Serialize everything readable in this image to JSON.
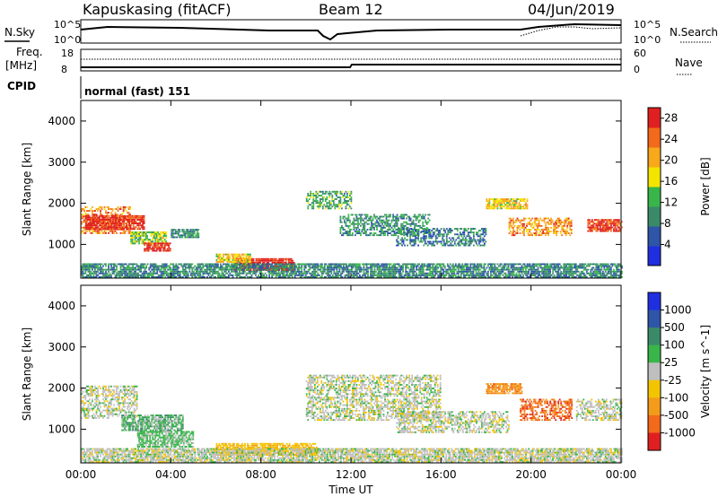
{
  "header": {
    "station": "Kapuskasing (fitACF)",
    "beam": "Beam 12",
    "date": "04/Jun/2019"
  },
  "top_panels": {
    "nsky_label": "N.Sky",
    "nsky_ticks": [
      "10^5",
      "10^0"
    ],
    "nsearch_label": "N.Search",
    "nsearch_ticks": [
      "10^5",
      "10^0"
    ],
    "freq_label_1": "Freq.",
    "freq_label_2": "[MHz]",
    "freq_ticks": [
      "18",
      "8"
    ],
    "nave_label": "Nave",
    "nave_ticks": [
      "60",
      "0"
    ],
    "cpid_label": "CPID",
    "cpid_text": "normal (fast) 151"
  },
  "colors": {
    "power_scale": [
      "#1f2fe0",
      "#2f55a8",
      "#3a8a6a",
      "#39b54a",
      "#f3e500",
      "#f7a81b",
      "#f26a1b",
      "#e02020"
    ],
    "velocity_scale": [
      "#1f2fe0",
      "#2f55a8",
      "#3a8a6a",
      "#39b54a",
      "#bfbfbf",
      "#f3c400",
      "#f39c1b",
      "#f26a1b",
      "#e02020"
    ]
  },
  "chart_data": [
    {
      "type": "heatmap",
      "panel": "power",
      "ylabel": "Slant Range [km]",
      "xlim": [
        0,
        24
      ],
      "ylim": [
        180,
        4500
      ],
      "yticks": [
        "1000",
        "2000",
        "3000",
        "4000"
      ],
      "colorbar_label": "Power [dB]",
      "colorbar_ticks": [
        "4",
        "8",
        "12",
        "16",
        "20",
        "24",
        "28"
      ],
      "colorbar_range": [
        0,
        30
      ],
      "regions": [
        {
          "t0": 0.0,
          "t1": 2.2,
          "r0": 1250,
          "r1": 1900,
          "val": 23
        },
        {
          "t0": 0.2,
          "t1": 2.8,
          "r0": 1350,
          "r1": 1700,
          "val": 28
        },
        {
          "t0": 2.2,
          "t1": 3.8,
          "r0": 1000,
          "r1": 1300,
          "val": 14
        },
        {
          "t0": 2.8,
          "t1": 4.0,
          "r0": 820,
          "r1": 1020,
          "val": 29
        },
        {
          "t0": 4.0,
          "t1": 5.2,
          "r0": 1150,
          "r1": 1350,
          "val": 10
        },
        {
          "t0": 6.8,
          "t1": 9.5,
          "r0": 350,
          "r1": 650,
          "val": 29
        },
        {
          "t0": 6.0,
          "t1": 7.5,
          "r0": 550,
          "r1": 750,
          "val": 18
        },
        {
          "t0": 10.0,
          "t1": 12.0,
          "r0": 1850,
          "r1": 2300,
          "val": 12
        },
        {
          "t0": 11.5,
          "t1": 15.5,
          "r0": 1200,
          "r1": 1700,
          "val": 10
        },
        {
          "t0": 14.0,
          "t1": 18.0,
          "r0": 950,
          "r1": 1400,
          "val": 8
        },
        {
          "t0": 18.0,
          "t1": 19.8,
          "r0": 1850,
          "r1": 2100,
          "val": 18
        },
        {
          "t0": 19.0,
          "t1": 21.8,
          "r0": 1200,
          "r1": 1650,
          "val": 22
        },
        {
          "t0": 22.5,
          "t1": 24.0,
          "r0": 1300,
          "r1": 1600,
          "val": 27
        },
        {
          "t0": 0.0,
          "t1": 24.0,
          "r0": 180,
          "r1": 520,
          "val": 9
        }
      ]
    },
    {
      "type": "heatmap",
      "panel": "velocity",
      "ylabel": "Slant Range [km]",
      "xlabel": "Time UT",
      "xlim": [
        0,
        24
      ],
      "ylim": [
        180,
        4500
      ],
      "xticks": [
        "00:00",
        "04:00",
        "08:00",
        "12:00",
        "16:00",
        "20:00",
        "00:00"
      ],
      "yticks": [
        "1000",
        "2000",
        "3000",
        "4000"
      ],
      "colorbar_label": "Velocity [m s^-1]",
      "colorbar_ticks": [
        "1000",
        "500",
        "100",
        "25",
        "-25",
        "-100",
        "-500",
        "-1000"
      ],
      "regions": [
        {
          "t0": 0.0,
          "t1": 2.5,
          "r0": 1250,
          "r1": 2050,
          "val": "low"
        },
        {
          "t0": 1.8,
          "t1": 4.5,
          "r0": 950,
          "r1": 1350,
          "val": "pos_med"
        },
        {
          "t0": 2.5,
          "t1": 5.0,
          "r0": 550,
          "r1": 950,
          "val": "pos_low"
        },
        {
          "t0": 6.0,
          "t1": 10.5,
          "r0": 350,
          "r1": 650,
          "val": "neg_low"
        },
        {
          "t0": 10.0,
          "t1": 16.0,
          "r0": 1200,
          "r1": 2300,
          "val": "low"
        },
        {
          "t0": 14.0,
          "t1": 19.0,
          "r0": 900,
          "r1": 1400,
          "val": "low"
        },
        {
          "t0": 18.0,
          "t1": 19.6,
          "r0": 1850,
          "r1": 2100,
          "val": "neg_med"
        },
        {
          "t0": 19.5,
          "t1": 21.8,
          "r0": 1200,
          "r1": 1700,
          "val": "neg_high"
        },
        {
          "t0": 22.0,
          "t1": 24.0,
          "r0": 1200,
          "r1": 1700,
          "val": "low"
        },
        {
          "t0": 0.0,
          "t1": 24.0,
          "r0": 180,
          "r1": 520,
          "val": "low"
        }
      ]
    }
  ]
}
